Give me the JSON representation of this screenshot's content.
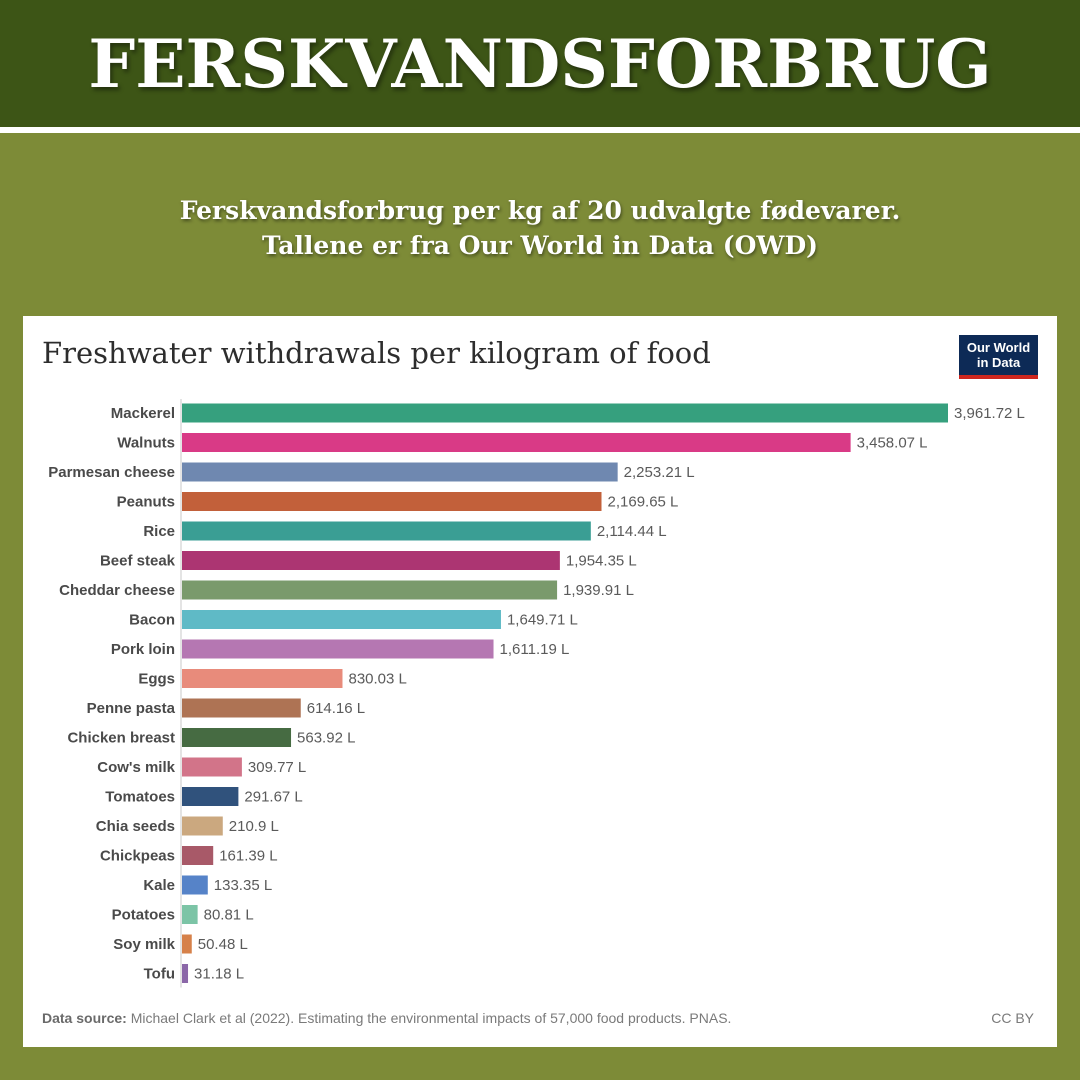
{
  "banner": {
    "title": "FERSKVANDSFORBRUG"
  },
  "subtitle": {
    "line1": "Ferskvandsforbrug per kg af 20 udvalgte fødevarer.",
    "line2": "Tallene er fra Our World in Data (OWD)"
  },
  "logo": {
    "line1": "Our World",
    "line2": "in Data"
  },
  "footer": {
    "source_label": "Data source:",
    "source_text": "Michael Clark et al (2022). Estimating the environmental impacts of 57,000 food products. PNAS.",
    "license": "CC BY"
  },
  "chart_data": {
    "type": "bar",
    "orientation": "horizontal",
    "title": "Freshwater withdrawals per kilogram of food",
    "unit": "L",
    "categories": [
      "Mackerel",
      "Walnuts",
      "Parmesan cheese",
      "Peanuts",
      "Rice",
      "Beef steak",
      "Cheddar cheese",
      "Bacon",
      "Pork loin",
      "Eggs",
      "Penne pasta",
      "Chicken breast",
      "Cow's milk",
      "Tomatoes",
      "Chia seeds",
      "Chickpeas",
      "Kale",
      "Potatoes",
      "Soy milk",
      "Tofu"
    ],
    "values": [
      3961.72,
      3458.07,
      2253.21,
      2169.65,
      2114.44,
      1954.35,
      1939.91,
      1649.71,
      1611.19,
      830.03,
      614.16,
      563.92,
      309.77,
      291.67,
      210.9,
      161.39,
      133.35,
      80.81,
      50.48,
      31.18
    ],
    "value_labels": [
      "3,961.72 L",
      "3,458.07 L",
      "2,253.21 L",
      "2,169.65 L",
      "2,114.44 L",
      "1,954.35 L",
      "1,939.91 L",
      "1,649.71 L",
      "1,611.19 L",
      "830.03 L",
      "614.16 L",
      "563.92 L",
      "309.77 L",
      "291.67 L",
      "210.9 L",
      "161.39 L",
      "133.35 L",
      "80.81 L",
      "50.48 L",
      "31.18 L"
    ],
    "colors": [
      "#36a07e",
      "#d93a86",
      "#6f88b0",
      "#c2603a",
      "#3a9e94",
      "#ac3572",
      "#7a9a6c",
      "#5fbac6",
      "#b577b2",
      "#e88b7b",
      "#ae7354",
      "#466b42",
      "#d27489",
      "#30527c",
      "#cba87f",
      "#a85968",
      "#5683c8",
      "#7cc4a6",
      "#d6814a",
      "#8b67a8"
    ],
    "xlim": [
      0,
      3961.72
    ],
    "grid": false,
    "legend": "none"
  }
}
